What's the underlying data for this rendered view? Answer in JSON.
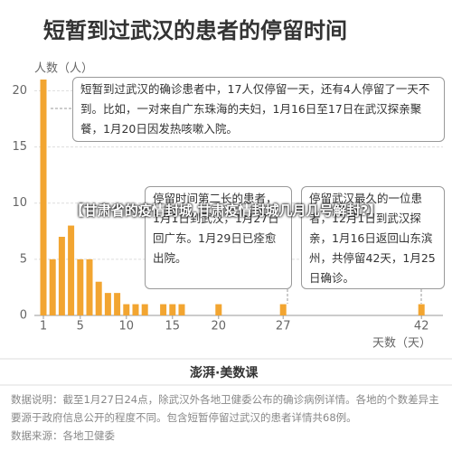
{
  "chart_data": {
    "type": "bar",
    "title": "短暂到过武汉的患者的停留时间",
    "y_label": "人数（人）",
    "x_label": "天数（天）",
    "x": [
      1,
      2,
      3,
      4,
      5,
      6,
      7,
      8,
      9,
      10,
      11,
      12,
      14,
      15,
      16,
      20,
      27,
      42
    ],
    "values": [
      21,
      5,
      7,
      8,
      5,
      5,
      3,
      2,
      2,
      1,
      1,
      1,
      1,
      1,
      1,
      1,
      1,
      1
    ],
    "color": "#f2a531",
    "xlim": [
      0,
      43
    ],
    "xticks": [
      1,
      5,
      10,
      15,
      20,
      27,
      42
    ],
    "ylim": [
      0,
      21
    ],
    "yticks": [
      0,
      5,
      10,
      15,
      20
    ],
    "annotations": [
      "短暂到过武汉的确诊患者中，17人仅停留一天，还有4人停留了一天不到。比如，一对来自广东珠海的夫妇，1月16日至17日在武汉探亲聚餐，1月20日因发热咳嗽入院。",
      "停留时间第二长的患者，1月1日到武汉，1月27日回广东。1月29日已痊愈出院。",
      "停留武汉最久的一位患者，12月1日到武汉探亲，1月16日返回山东滨州，共停留42天，1月25日确诊。"
    ],
    "logo": "澎湃·美数课",
    "footer": "数据说明：截至1月27日24点，除武汉外各地卫健委公布的确诊病例详情。各地的个数差异主要源于政府信息公开的程度不同。包含短暂停留过武汉的患者详情共68例。",
    "source": "数据来源：各地卫健委",
    "banner": "【甘肃省的疫情封城,甘肃疫情封城几月几号解封?】"
  }
}
